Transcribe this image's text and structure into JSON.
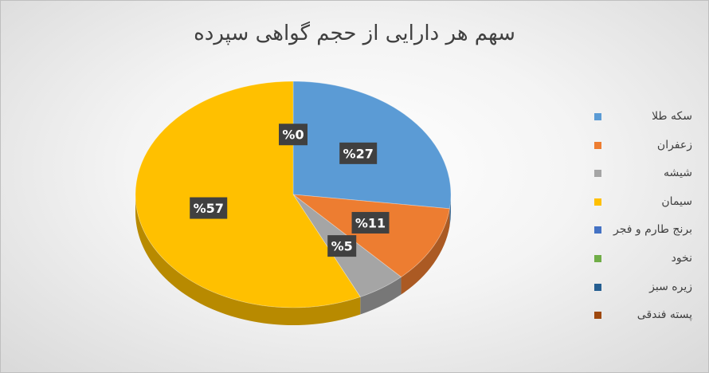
{
  "chart_data": {
    "type": "pie",
    "title": "سهم هر دارایی از حجم گواهی سپرده",
    "categories": [
      "سکه طلا",
      "زعفران",
      "شیشه",
      "سیمان",
      "برنج طارم و فجر",
      "نخود",
      "زیره سبز",
      "پسته فندقی"
    ],
    "values": [
      27,
      11,
      5,
      57,
      0,
      0,
      0,
      0
    ],
    "data_labels": [
      "%27",
      "%11",
      "%5",
      "%57",
      "%0",
      "",
      "",
      ""
    ],
    "colors": [
      "#5b9bd5",
      "#ed7d31",
      "#a5a5a5",
      "#ffc000",
      "#4472c4",
      "#70ad47",
      "#255e91",
      "#9e480e"
    ],
    "legend_position": "right",
    "style": "3d-pie"
  }
}
